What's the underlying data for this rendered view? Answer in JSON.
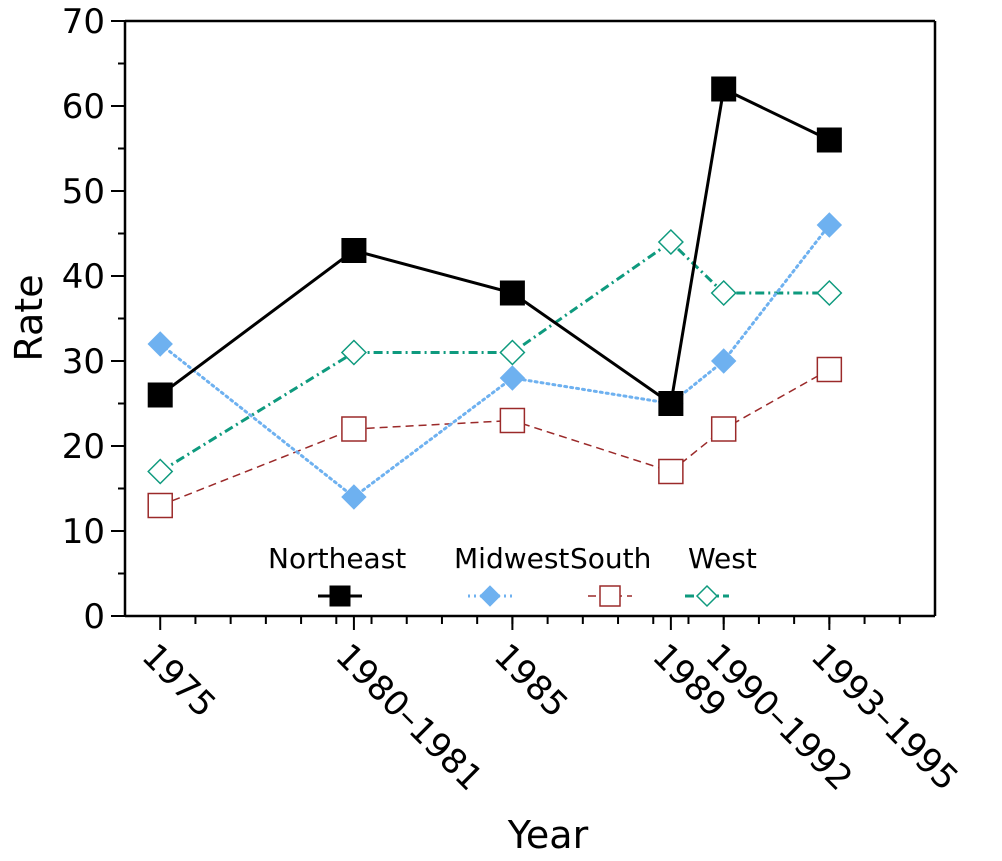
{
  "chart_data": {
    "type": "line",
    "xlabel": "Year",
    "ylabel": "Rate",
    "ylim": [
      0,
      70
    ],
    "y_ticks": [
      0,
      10,
      20,
      30,
      40,
      50,
      60,
      70
    ],
    "x_time": [
      1975,
      1980.5,
      1985,
      1989.5,
      1991,
      1994
    ],
    "categories": [
      "1975",
      "1980–1981",
      "1985",
      "1989",
      "1990–1992",
      "1993–1995"
    ],
    "series": [
      {
        "name": "Northeast",
        "values": [
          26,
          43,
          38,
          25,
          62,
          56
        ],
        "color": "#000000",
        "marker": "square-filled",
        "line": "solid"
      },
      {
        "name": "Midwest",
        "values": [
          32,
          14,
          28,
          25,
          30,
          46
        ],
        "color": "#6EB1F0",
        "marker": "diamond-filled",
        "line": "dotted"
      },
      {
        "name": "South",
        "values": [
          13,
          22,
          23,
          17,
          22,
          29
        ],
        "color": "#9B2A2A",
        "marker": "square-open",
        "line": "dashed"
      },
      {
        "name": "West",
        "values": [
          17,
          31,
          31,
          44,
          38,
          38
        ],
        "color": "#0E9A7E",
        "marker": "diamond-open",
        "line": "dash-dot"
      }
    ],
    "legend_position": "bottom-center",
    "grid": false
  }
}
